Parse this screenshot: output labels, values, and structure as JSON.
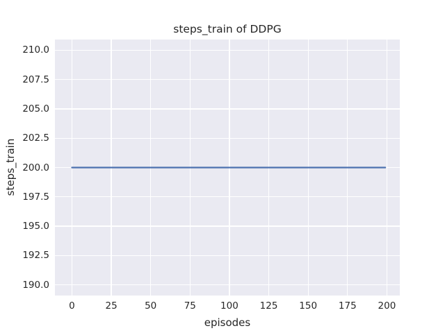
{
  "colors": {
    "figure_background": "#ffffff",
    "axes_background": "#eaeaf2",
    "grid": "#ffffff",
    "line": "#4c72b0",
    "text": "#262626"
  },
  "chart_data": {
    "type": "line",
    "title": "steps_train of DDPG",
    "xlabel": "episodes",
    "ylabel": "steps_train",
    "xlim": [
      -10.8,
      208.2
    ],
    "ylim": [
      189.1,
      210.9
    ],
    "grid": true,
    "legend": false,
    "style": "seaborn-darkgrid",
    "xticks": [
      {
        "label": "0",
        "value": 0
      },
      {
        "label": "25",
        "value": 25
      },
      {
        "label": "50",
        "value": 50
      },
      {
        "label": "75",
        "value": 75
      },
      {
        "label": "100",
        "value": 100
      },
      {
        "label": "125",
        "value": 125
      },
      {
        "label": "150",
        "value": 150
      },
      {
        "label": "175",
        "value": 175
      },
      {
        "label": "200",
        "value": 200
      }
    ],
    "yticks": [
      {
        "label": "190.0",
        "value": 190.0
      },
      {
        "label": "192.5",
        "value": 192.5
      },
      {
        "label": "195.0",
        "value": 195.0
      },
      {
        "label": "197.5",
        "value": 197.5
      },
      {
        "label": "200.0",
        "value": 200.0
      },
      {
        "label": "202.5",
        "value": 202.5
      },
      {
        "label": "205.0",
        "value": 205.0
      },
      {
        "label": "207.5",
        "value": 207.5
      },
      {
        "label": "210.0",
        "value": 210.0
      }
    ],
    "series": [
      {
        "name": "steps_train",
        "color": "#4c72b0",
        "line_width": 2.2,
        "x": [
          0,
          199
        ],
        "y": [
          200,
          200
        ]
      }
    ]
  }
}
